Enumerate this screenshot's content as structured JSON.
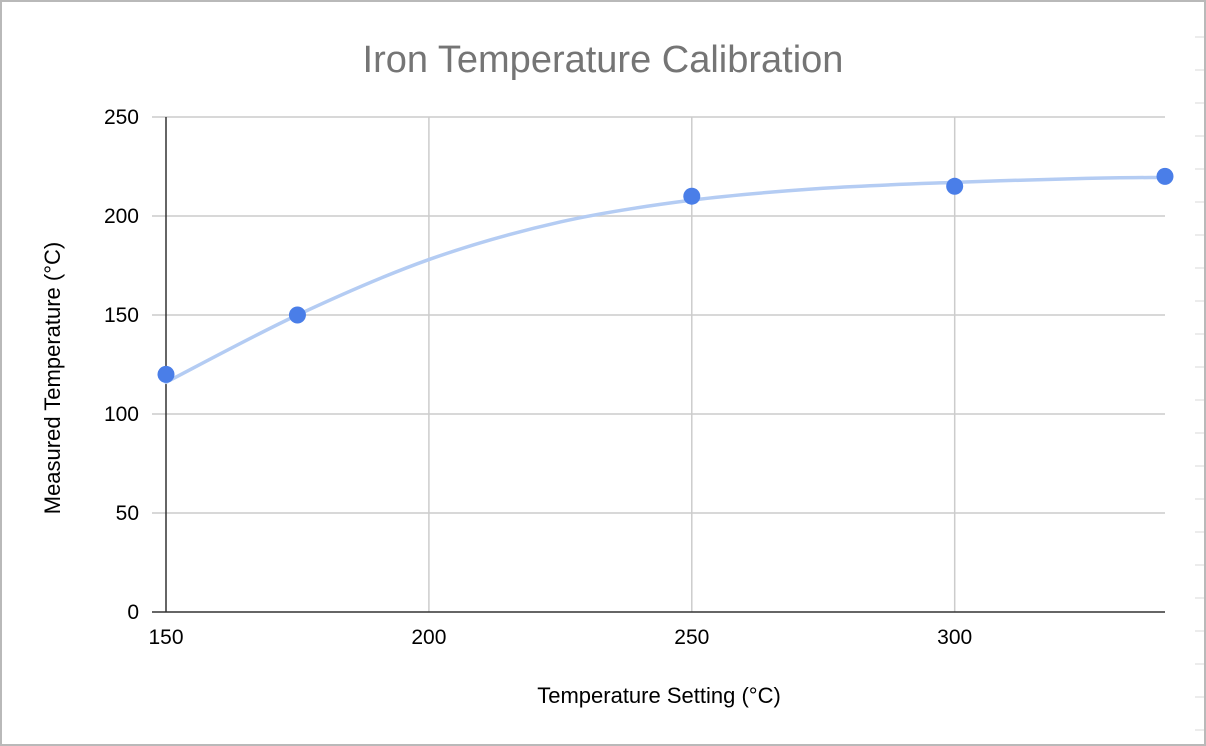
{
  "chart_data": {
    "type": "scatter",
    "title": "Iron Temperature Calibration",
    "xlabel": "Temperature Setting (°C)",
    "ylabel": "Measured Temperature (°C)",
    "xlim": [
      150,
      340
    ],
    "ylim": [
      0,
      250
    ],
    "xticks": [
      150,
      200,
      250,
      300
    ],
    "yticks": [
      0,
      50,
      100,
      150,
      200,
      250
    ],
    "grid": true,
    "legend": "none",
    "series": [
      {
        "name": "Measured Temperature",
        "x": [
          150,
          175,
          250,
          300,
          340
        ],
        "y": [
          120,
          150,
          210,
          215,
          220
        ]
      }
    ],
    "trendline": {
      "type": "smooth curve",
      "x": [
        150,
        175,
        200,
        225,
        250,
        275,
        300,
        325,
        340
      ],
      "y": [
        116,
        150,
        178,
        197,
        208,
        214,
        217,
        219,
        219.5
      ]
    },
    "colors": {
      "points": "#4a7ee8",
      "trendline": "#b4ccf3",
      "title": "#757575",
      "grid": "#cccccc"
    }
  }
}
